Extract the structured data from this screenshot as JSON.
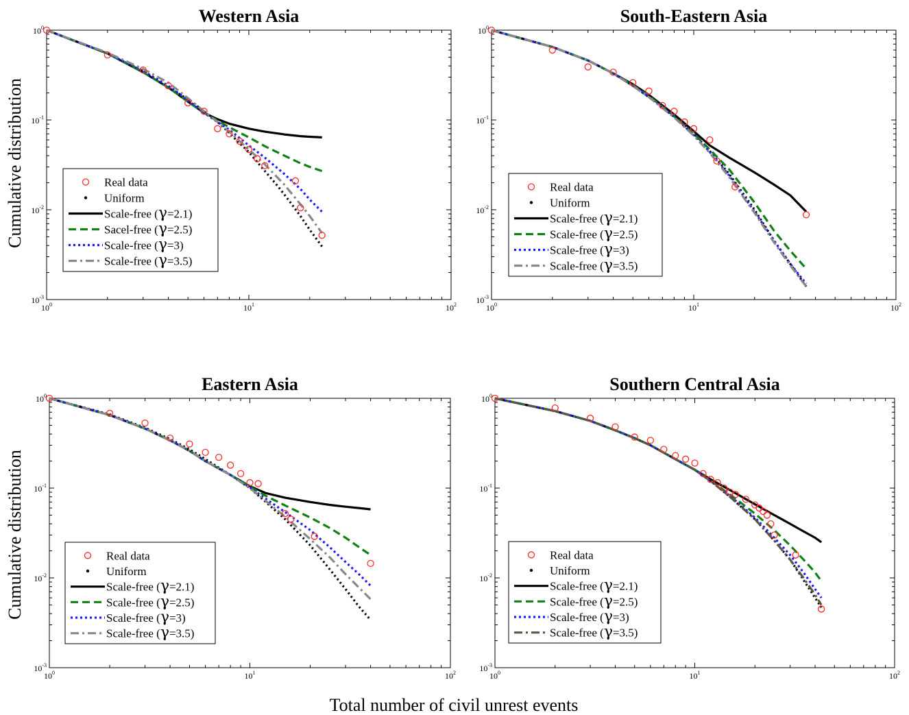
{
  "figure": {
    "xlabel": "Total number of civil unrest events",
    "ylabel": "Cumulative distribution"
  },
  "axes_ticks": {
    "x": [
      {
        "base": "10",
        "exp": "0"
      },
      {
        "base": "10",
        "exp": "1"
      },
      {
        "base": "10",
        "exp": "2"
      }
    ],
    "y": [
      {
        "base": "10",
        "exp": "0"
      },
      {
        "base": "10",
        "exp": "-1"
      },
      {
        "base": "10",
        "exp": "-2"
      },
      {
        "base": "10",
        "exp": "-3"
      }
    ]
  },
  "colors": {
    "real_data": "#ff2a2a",
    "uniform": "#000000",
    "gamma_2_1": "#000000",
    "gamma_2_5": "#138013",
    "gamma_3": "#1a1aff",
    "gamma_3_5": "#888888",
    "gamma_3_5_alt": "#565a45"
  },
  "chart_data": [
    {
      "type": "line",
      "title": "Western Asia",
      "xscale": "log",
      "yscale": "log",
      "xlim": [
        1,
        100
      ],
      "ylim": [
        0.001,
        1
      ],
      "legend_position": "lower-left",
      "legend": [
        {
          "text": "Real data"
        },
        {
          "text": "Uniform"
        },
        {
          "text": "Scale-free (",
          "gamma": "γ",
          "after": "=2.1)"
        },
        {
          "text": "Sacel-free (",
          "gamma": "γ",
          "after": "=2.5)"
        },
        {
          "text": "Scale-free (",
          "gamma": "γ",
          "after": "=3)"
        },
        {
          "text": "Scale-free (",
          "gamma": "γ",
          "after": "=3.5)"
        }
      ],
      "real_data": {
        "x": [
          1,
          2,
          3,
          4,
          5,
          6,
          7,
          8,
          9,
          10,
          11,
          12,
          17,
          18,
          23
        ],
        "y": [
          1,
          0.53,
          0.36,
          0.24,
          0.155,
          0.125,
          0.08,
          0.07,
          0.058,
          0.047,
          0.037,
          0.031,
          0.021,
          0.0105,
          0.0052
        ]
      },
      "curves": [
        {
          "style": "uniform",
          "x": [
            1,
            2,
            3,
            4,
            5,
            6,
            7,
            8,
            9,
            10,
            11,
            12,
            14,
            16,
            18,
            20,
            23
          ],
          "y": [
            1,
            0.55,
            0.35,
            0.23,
            0.17,
            0.125,
            0.095,
            0.072,
            0.055,
            0.044,
            0.034,
            0.027,
            0.018,
            0.0122,
            0.0085,
            0.006,
            0.0039
          ]
        },
        {
          "style": "gamma_2_1",
          "x": [
            1,
            2,
            3,
            4,
            5,
            6,
            7,
            8,
            10,
            12,
            15,
            18,
            20,
            23
          ],
          "y": [
            1,
            0.55,
            0.34,
            0.23,
            0.16,
            0.12,
            0.102,
            0.091,
            0.08,
            0.074,
            0.069,
            0.066,
            0.065,
            0.064
          ]
        },
        {
          "style": "gamma_2_5",
          "x": [
            1,
            2,
            3,
            4,
            5,
            6,
            7,
            8,
            10,
            12,
            15,
            18,
            20,
            23
          ],
          "y": [
            1,
            0.55,
            0.34,
            0.23,
            0.16,
            0.12,
            0.098,
            0.083,
            0.064,
            0.051,
            0.04,
            0.033,
            0.03,
            0.027
          ]
        },
        {
          "style": "gamma_3",
          "x": [
            1,
            2,
            3,
            4,
            5,
            6,
            7,
            8,
            10,
            12,
            15,
            18,
            20,
            23
          ],
          "y": [
            1,
            0.55,
            0.35,
            0.24,
            0.165,
            0.12,
            0.095,
            0.078,
            0.052,
            0.038,
            0.025,
            0.017,
            0.013,
            0.0095
          ]
        },
        {
          "style": "gamma_3_5",
          "x": [
            1,
            2,
            3,
            4,
            5,
            6,
            7,
            8,
            10,
            12,
            15,
            18,
            20,
            23
          ],
          "y": [
            1,
            0.56,
            0.37,
            0.26,
            0.175,
            0.125,
            0.095,
            0.074,
            0.047,
            0.032,
            0.019,
            0.0115,
            0.0085,
            0.0055
          ]
        }
      ]
    },
    {
      "type": "line",
      "title": "South-Eastern Asia",
      "xscale": "log",
      "yscale": "log",
      "xlim": [
        1,
        100
      ],
      "ylim": [
        0.001,
        1
      ],
      "legend_position": "lower-left",
      "legend": [
        {
          "text": "Real data"
        },
        {
          "text": "Uniform"
        },
        {
          "text": "Scale-free (",
          "gamma": "γ",
          "after": "=2.1)"
        },
        {
          "text": "Scale-free (",
          "gamma": "γ",
          "after": "=2.5)"
        },
        {
          "text": "Scale-free (",
          "gamma": "γ",
          "after": "=3)"
        },
        {
          "text": "Scale-free (",
          "gamma": "γ",
          "after": "=3.5)"
        }
      ],
      "real_data": {
        "x": [
          1,
          2,
          3,
          4,
          5,
          6,
          7,
          8,
          9,
          10,
          12,
          13,
          16,
          36
        ],
        "y": [
          1,
          0.6,
          0.39,
          0.34,
          0.26,
          0.21,
          0.145,
          0.125,
          0.095,
          0.08,
          0.06,
          0.035,
          0.018,
          0.0088
        ]
      },
      "curves": [
        {
          "style": "uniform",
          "x": [
            1,
            2,
            3,
            4,
            5,
            6,
            8,
            10,
            12,
            15,
            20,
            25,
            30,
            36
          ],
          "y": [
            1,
            0.65,
            0.46,
            0.33,
            0.24,
            0.18,
            0.11,
            0.07,
            0.045,
            0.025,
            0.01,
            0.0045,
            0.0025,
            0.0014
          ]
        },
        {
          "style": "gamma_2_1",
          "x": [
            1,
            2,
            3,
            4,
            5,
            6,
            8,
            10,
            12,
            15,
            20,
            25,
            30,
            36
          ],
          "y": [
            1,
            0.65,
            0.46,
            0.33,
            0.25,
            0.19,
            0.115,
            0.075,
            0.052,
            0.038,
            0.026,
            0.019,
            0.0145,
            0.0095
          ]
        },
        {
          "style": "gamma_2_5",
          "x": [
            1,
            2,
            3,
            4,
            5,
            6,
            8,
            10,
            12,
            15,
            20,
            25,
            30,
            36
          ],
          "y": [
            1,
            0.65,
            0.46,
            0.33,
            0.245,
            0.185,
            0.11,
            0.07,
            0.047,
            0.028,
            0.012,
            0.0058,
            0.0035,
            0.0022
          ]
        },
        {
          "style": "gamma_3",
          "x": [
            1,
            2,
            3,
            4,
            5,
            6,
            8,
            10,
            12,
            15,
            20,
            25,
            30,
            36
          ],
          "y": [
            1,
            0.65,
            0.46,
            0.33,
            0.24,
            0.18,
            0.108,
            0.068,
            0.044,
            0.024,
            0.0095,
            0.0045,
            0.0025,
            0.0015
          ]
        },
        {
          "style": "gamma_3_5",
          "x": [
            1,
            2,
            3,
            4,
            5,
            6,
            8,
            10,
            12,
            15,
            20,
            25,
            30,
            36
          ],
          "y": [
            1,
            0.65,
            0.46,
            0.33,
            0.24,
            0.18,
            0.107,
            0.067,
            0.043,
            0.023,
            0.0092,
            0.0043,
            0.0024,
            0.0014
          ]
        }
      ]
    },
    {
      "type": "line",
      "title": "Eastern Asia",
      "xscale": "log",
      "yscale": "log",
      "xlim": [
        1,
        100
      ],
      "ylim": [
        0.001,
        1
      ],
      "legend_position": "lower-left",
      "legend": [
        {
          "text": "Real data"
        },
        {
          "text": "Uniform"
        },
        {
          "text": "Scale-free (",
          "gamma": "γ",
          "after": "=2.1)"
        },
        {
          "text": "Scale-free (",
          "gamma": "γ",
          "after": "=2.5)"
        },
        {
          "text": "Scale-free (",
          "gamma": "γ",
          "after": "=3)"
        },
        {
          "text": "Scale-free (",
          "gamma": "γ",
          "after": "=3.5)"
        }
      ],
      "real_data": {
        "x": [
          1,
          2,
          3,
          4,
          5,
          6,
          7,
          8,
          9,
          10,
          11,
          15,
          16,
          21,
          40
        ],
        "y": [
          1,
          0.68,
          0.53,
          0.36,
          0.31,
          0.25,
          0.22,
          0.18,
          0.145,
          0.115,
          0.112,
          0.052,
          0.045,
          0.029,
          0.0145
        ]
      },
      "curves": [
        {
          "style": "uniform",
          "x": [
            1,
            2,
            3,
            4,
            5,
            6,
            8,
            10,
            12,
            15,
            20,
            25,
            30,
            35,
            40
          ],
          "y": [
            1,
            0.66,
            0.47,
            0.35,
            0.27,
            0.21,
            0.14,
            0.1,
            0.07,
            0.045,
            0.023,
            0.0125,
            0.0075,
            0.0048,
            0.0034
          ]
        },
        {
          "style": "gamma_2_1",
          "x": [
            1,
            2,
            3,
            4,
            5,
            6,
            8,
            10,
            12,
            15,
            20,
            25,
            30,
            35,
            40
          ],
          "y": [
            1,
            0.65,
            0.46,
            0.34,
            0.26,
            0.2,
            0.14,
            0.105,
            0.088,
            0.078,
            0.07,
            0.065,
            0.062,
            0.06,
            0.058
          ]
        },
        {
          "style": "gamma_2_5",
          "x": [
            1,
            2,
            3,
            4,
            5,
            6,
            8,
            10,
            12,
            15,
            20,
            25,
            30,
            35,
            40
          ],
          "y": [
            1,
            0.65,
            0.46,
            0.34,
            0.26,
            0.2,
            0.14,
            0.104,
            0.082,
            0.064,
            0.047,
            0.036,
            0.028,
            0.022,
            0.018
          ]
        },
        {
          "style": "gamma_3",
          "x": [
            1,
            2,
            3,
            4,
            5,
            6,
            8,
            10,
            12,
            15,
            20,
            25,
            30,
            35,
            40
          ],
          "y": [
            1,
            0.65,
            0.46,
            0.34,
            0.26,
            0.2,
            0.14,
            0.102,
            0.076,
            0.054,
            0.034,
            0.022,
            0.015,
            0.011,
            0.0082
          ]
        },
        {
          "style": "gamma_3_5",
          "x": [
            1,
            2,
            3,
            4,
            5,
            6,
            8,
            10,
            12,
            15,
            20,
            25,
            30,
            35,
            40
          ],
          "y": [
            1,
            0.65,
            0.46,
            0.34,
            0.26,
            0.2,
            0.14,
            0.1,
            0.072,
            0.048,
            0.027,
            0.017,
            0.011,
            0.0078,
            0.0058
          ]
        }
      ]
    },
    {
      "type": "line",
      "title": "Southern Central Asia",
      "xscale": "log",
      "yscale": "log",
      "xlim": [
        1,
        100
      ],
      "ylim": [
        0.001,
        1
      ],
      "legend_position": "lower-left",
      "legend": [
        {
          "text": "Real data"
        },
        {
          "text": "Uniform"
        },
        {
          "text": "Scale-free (",
          "gamma": "γ",
          "after": "=2.1)"
        },
        {
          "text": "Scale-free (",
          "gamma": "γ",
          "after": "=2.5)"
        },
        {
          "text": "Scale-free (",
          "gamma": "γ",
          "after": "=3)"
        },
        {
          "text": "Scale-free (",
          "gamma": "γ",
          "after": "=3.5)"
        }
      ],
      "real_data": {
        "x": [
          1,
          2,
          3,
          4,
          5,
          6,
          7,
          8,
          9,
          10,
          11,
          12,
          13,
          14,
          15,
          16,
          18,
          20,
          21,
          22,
          23,
          24,
          25,
          32,
          43
        ],
        "y": [
          1,
          0.78,
          0.6,
          0.48,
          0.37,
          0.34,
          0.27,
          0.23,
          0.21,
          0.19,
          0.145,
          0.125,
          0.115,
          0.1,
          0.09,
          0.085,
          0.075,
          0.065,
          0.06,
          0.055,
          0.05,
          0.04,
          0.03,
          0.018,
          0.0045
        ]
      },
      "curves": [
        {
          "style": "uniform",
          "x": [
            1,
            2,
            3,
            4,
            5,
            6,
            8,
            10,
            12,
            15,
            20,
            25,
            30,
            35,
            40,
            43
          ],
          "y": [
            1,
            0.72,
            0.56,
            0.44,
            0.36,
            0.3,
            0.21,
            0.16,
            0.12,
            0.08,
            0.045,
            0.026,
            0.016,
            0.0095,
            0.006,
            0.0047
          ]
        },
        {
          "style": "gamma_2_1",
          "x": [
            1,
            2,
            3,
            4,
            5,
            6,
            8,
            10,
            12,
            15,
            20,
            25,
            30,
            35,
            40,
            43
          ],
          "y": [
            1,
            0.72,
            0.56,
            0.44,
            0.36,
            0.3,
            0.21,
            0.16,
            0.125,
            0.095,
            0.066,
            0.05,
            0.04,
            0.033,
            0.028,
            0.025
          ]
        },
        {
          "style": "gamma_2_5",
          "x": [
            1,
            2,
            3,
            4,
            5,
            6,
            8,
            10,
            12,
            15,
            20,
            25,
            30,
            35,
            40,
            43
          ],
          "y": [
            1,
            0.72,
            0.56,
            0.44,
            0.36,
            0.3,
            0.21,
            0.16,
            0.12,
            0.085,
            0.052,
            0.034,
            0.023,
            0.016,
            0.0115,
            0.0092
          ]
        },
        {
          "style": "gamma_3",
          "x": [
            1,
            2,
            3,
            4,
            5,
            6,
            8,
            10,
            12,
            15,
            20,
            25,
            30,
            35,
            40,
            43
          ],
          "y": [
            1,
            0.72,
            0.56,
            0.44,
            0.36,
            0.3,
            0.21,
            0.16,
            0.12,
            0.082,
            0.047,
            0.028,
            0.018,
            0.0115,
            0.0075,
            0.006
          ]
        },
        {
          "style": "gamma_3_5_alt",
          "x": [
            1,
            2,
            3,
            4,
            5,
            6,
            8,
            10,
            12,
            15,
            20,
            25,
            30,
            35,
            40,
            43
          ],
          "y": [
            1,
            0.72,
            0.56,
            0.44,
            0.36,
            0.3,
            0.21,
            0.16,
            0.12,
            0.08,
            0.045,
            0.026,
            0.016,
            0.01,
            0.0065,
            0.005
          ]
        }
      ]
    }
  ]
}
